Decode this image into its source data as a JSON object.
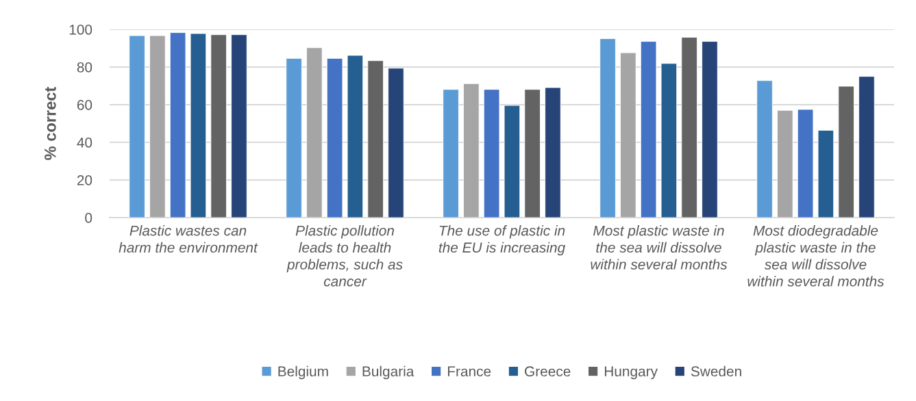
{
  "chart_data": {
    "type": "bar",
    "ylabel": "% correct",
    "categories": [
      "Plastic wastes can harm the environment",
      "Plastic pollution leads to health problems, such as cancer",
      "The use of plastic in the EU is increasing",
      "Most plastic waste in the sea will dissolve within several months",
      "Most diodegradable plastic waste in the sea will dissolve within several months"
    ],
    "series": [
      {
        "name": "Belgium",
        "color": "#5b9bd5",
        "values": [
          96.7,
          84.6,
          68.1,
          95.1,
          72.8
        ]
      },
      {
        "name": "Bulgaria",
        "color": "#a5a5a5",
        "values": [
          96.7,
          90.3,
          71.2,
          87.6,
          57.0
        ]
      },
      {
        "name": "France",
        "color": "#4472c4",
        "values": [
          98.3,
          84.6,
          68.1,
          93.6,
          57.5
        ]
      },
      {
        "name": "Greece",
        "color": "#255e91",
        "values": [
          97.8,
          86.2,
          59.6,
          81.9,
          46.4
        ]
      },
      {
        "name": "Hungary",
        "color": "#636363",
        "values": [
          97.2,
          83.4,
          68.1,
          95.8,
          69.8
        ]
      },
      {
        "name": "Sweden",
        "color": "#264478",
        "values": [
          97.2,
          79.4,
          69.1,
          93.6,
          75.0
        ]
      }
    ],
    "ylim": [
      0,
      100
    ],
    "yticks": [
      0,
      20,
      40,
      60,
      80,
      100
    ],
    "grid": "y",
    "legend": "bottom"
  }
}
